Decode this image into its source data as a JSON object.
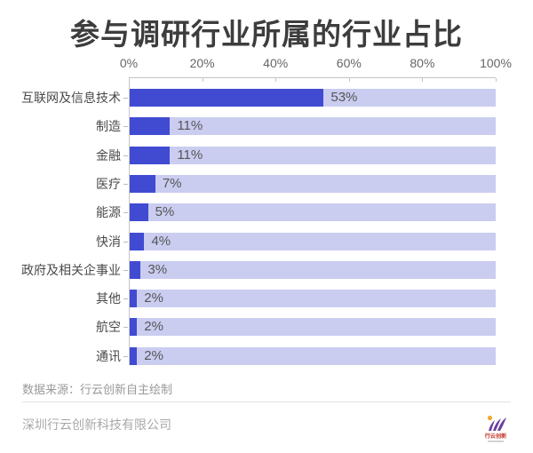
{
  "title": "参与调研行业所属的行业占比",
  "chart_data": {
    "type": "bar",
    "orientation": "horizontal",
    "title": "参与调研行业所属的行业占比",
    "categories": [
      "互联网及信息技术",
      "制造",
      "金融",
      "医疗",
      "能源",
      "快消",
      "政府及相关企事业",
      "其他",
      "航空",
      "通讯"
    ],
    "values": [
      53,
      11,
      11,
      7,
      5,
      4,
      3,
      2,
      2,
      2
    ],
    "value_labels": [
      "53%",
      "11%",
      "11%",
      "7%",
      "5%",
      "4%",
      "3%",
      "2%",
      "2%",
      "2%"
    ],
    "x_ticks": [
      "0%",
      "20%",
      "40%",
      "60%",
      "80%",
      "100%"
    ],
    "xlim": [
      0,
      100
    ],
    "grid": false,
    "legend": "none",
    "bar_color": "#414bd2",
    "track_color": "#cacdf0"
  },
  "footer": {
    "source": "数据来源：行云创新自主绘制",
    "company": "深圳行云创新科技有限公司",
    "logo_text": "行云创新",
    "logo_accent_color": "#6a3fa0",
    "logo_dot_color": "#f0a830",
    "logo_text_color": "#c0392b"
  }
}
